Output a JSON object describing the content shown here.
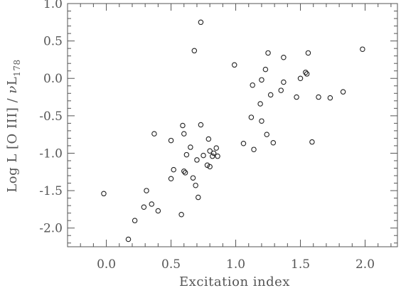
{
  "chart_data": {
    "type": "scatter",
    "title": "",
    "xlabel": "Excitation index",
    "ylabel_parts": {
      "prefix": "Log L [O III] / ",
      "nu": "ν",
      "L": "L",
      "sub": "178"
    },
    "xlim": [
      -0.3,
      2.25
    ],
    "ylim": [
      -2.25,
      1.0
    ],
    "xticks": [
      0.0,
      0.5,
      1.0,
      1.5,
      2.0
    ],
    "xtick_labels": [
      "0.0",
      "0.5",
      "1.0",
      "1.5",
      "2.0"
    ],
    "yticks": [
      -2.0,
      -1.5,
      -1.0,
      -0.5,
      0.0,
      0.5,
      1.0
    ],
    "ytick_labels": [
      "-2.0",
      "-1.5",
      "-1.0",
      "-0.5",
      "0.0",
      "0.5",
      "1.0"
    ],
    "x_minor_step": 0.1,
    "y_minor_step": 0.1,
    "grid": false,
    "marker": "open-circle",
    "points": [
      [
        -0.02,
        -1.54
      ],
      [
        0.17,
        -2.15
      ],
      [
        0.22,
        -1.9
      ],
      [
        0.29,
        -1.72
      ],
      [
        0.31,
        -1.5
      ],
      [
        0.35,
        -1.68
      ],
      [
        0.37,
        -0.74
      ],
      [
        0.4,
        -1.77
      ],
      [
        0.5,
        -0.83
      ],
      [
        0.5,
        -1.34
      ],
      [
        0.52,
        -1.22
      ],
      [
        0.58,
        -1.82
      ],
      [
        0.59,
        -0.63
      ],
      [
        0.6,
        -0.74
      ],
      [
        0.6,
        -1.24
      ],
      [
        0.61,
        -1.26
      ],
      [
        0.62,
        -1.02
      ],
      [
        0.65,
        -0.92
      ],
      [
        0.67,
        -1.33
      ],
      [
        0.68,
        0.37
      ],
      [
        0.69,
        -1.43
      ],
      [
        0.7,
        -1.09
      ],
      [
        0.71,
        -1.59
      ],
      [
        0.73,
        0.75
      ],
      [
        0.73,
        -0.62
      ],
      [
        0.75,
        -1.03
      ],
      [
        0.78,
        -1.16
      ],
      [
        0.79,
        -0.81
      ],
      [
        0.8,
        -0.97
      ],
      [
        0.8,
        -1.18
      ],
      [
        0.82,
        -1.04
      ],
      [
        0.83,
        -1.0
      ],
      [
        0.85,
        -0.93
      ],
      [
        0.86,
        -1.04
      ],
      [
        0.99,
        0.18
      ],
      [
        1.06,
        -0.87
      ],
      [
        1.12,
        -0.52
      ],
      [
        1.13,
        -0.09
      ],
      [
        1.14,
        -0.95
      ],
      [
        1.19,
        -0.34
      ],
      [
        1.2,
        -0.57
      ],
      [
        1.2,
        -0.02
      ],
      [
        1.23,
        0.12
      ],
      [
        1.24,
        -0.75
      ],
      [
        1.25,
        0.34
      ],
      [
        1.27,
        -0.22
      ],
      [
        1.29,
        -0.86
      ],
      [
        1.35,
        -0.16
      ],
      [
        1.37,
        -0.05
      ],
      [
        1.37,
        0.28
      ],
      [
        1.47,
        -0.25
      ],
      [
        1.5,
        0.0
      ],
      [
        1.54,
        0.08
      ],
      [
        1.55,
        0.06
      ],
      [
        1.56,
        0.34
      ],
      [
        1.59,
        -0.85
      ],
      [
        1.64,
        -0.25
      ],
      [
        1.73,
        -0.26
      ],
      [
        1.83,
        -0.18
      ],
      [
        1.98,
        0.39
      ]
    ]
  }
}
